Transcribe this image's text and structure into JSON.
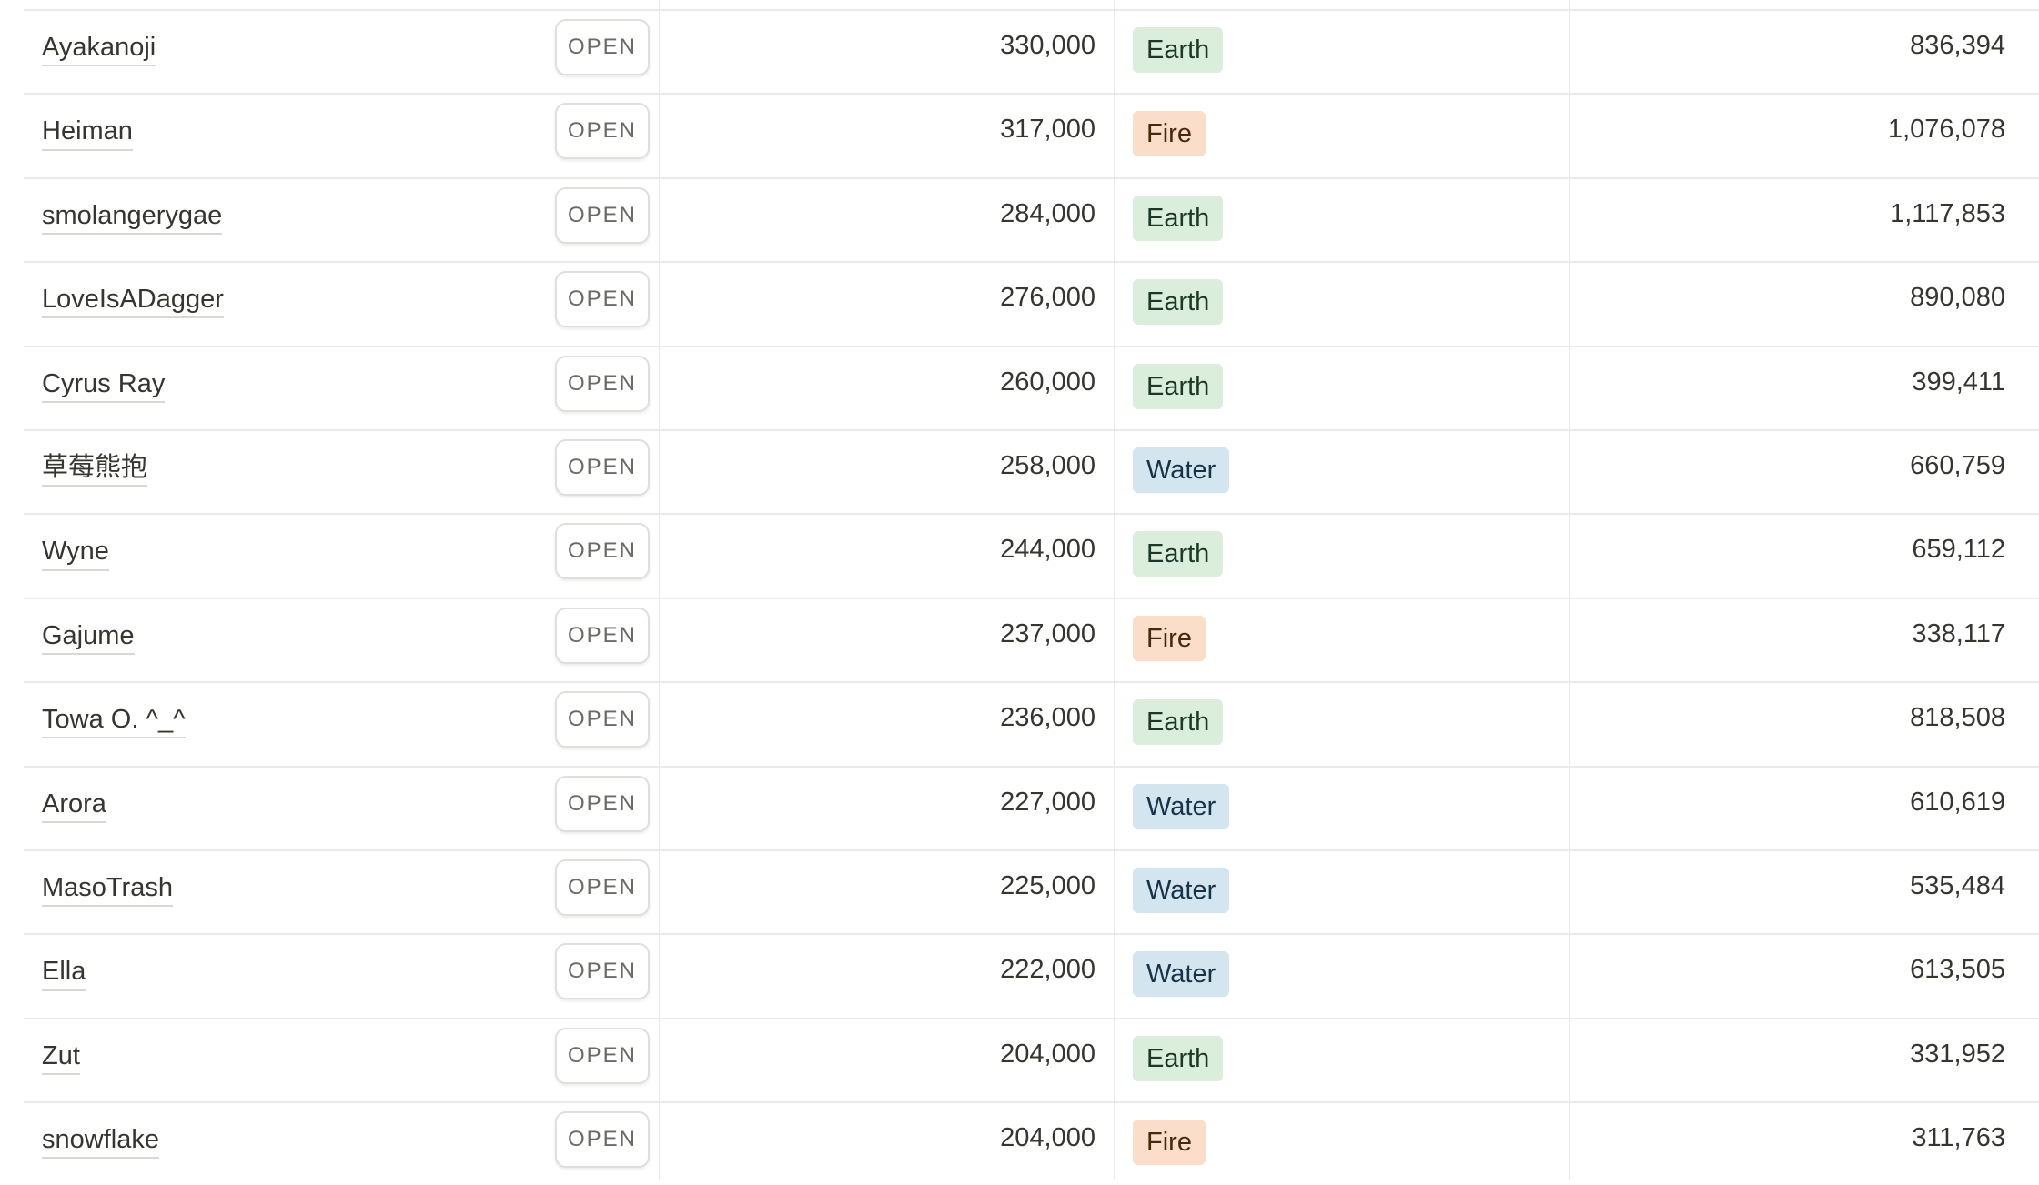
{
  "table": {
    "open_label": "OPEN",
    "tag_colors": {
      "Earth": "#dbeddb",
      "Fire": "#fadec9",
      "Water": "#d3e5ef"
    },
    "rows": [
      {
        "name": "Ayakanoji",
        "value": "330,000",
        "tag": "Earth",
        "total": "836,394"
      },
      {
        "name": "Heiman",
        "value": "317,000",
        "tag": "Fire",
        "total": "1,076,078"
      },
      {
        "name": "smolangerygae",
        "value": "284,000",
        "tag": "Earth",
        "total": "1,117,853"
      },
      {
        "name": "LoveIsADagger",
        "value": "276,000",
        "tag": "Earth",
        "total": "890,080"
      },
      {
        "name": "Cyrus Ray",
        "value": "260,000",
        "tag": "Earth",
        "total": "399,411"
      },
      {
        "name": "草莓熊抱",
        "value": "258,000",
        "tag": "Water",
        "total": "660,759"
      },
      {
        "name": "Wyne",
        "value": "244,000",
        "tag": "Earth",
        "total": "659,112"
      },
      {
        "name": "Gajume",
        "value": "237,000",
        "tag": "Fire",
        "total": "338,117"
      },
      {
        "name": "Towa O. ^_^",
        "value": "236,000",
        "tag": "Earth",
        "total": "818,508"
      },
      {
        "name": "Arora",
        "value": "227,000",
        "tag": "Water",
        "total": "610,619"
      },
      {
        "name": "MasoTrash",
        "value": "225,000",
        "tag": "Water",
        "total": "535,484"
      },
      {
        "name": "Ella",
        "value": "222,000",
        "tag": "Water",
        "total": "613,505"
      },
      {
        "name": "Zut",
        "value": "204,000",
        "tag": "Earth",
        "total": "331,952"
      },
      {
        "name": "snowflake",
        "value": "204,000",
        "tag": "Fire",
        "total": "311,763"
      }
    ]
  }
}
